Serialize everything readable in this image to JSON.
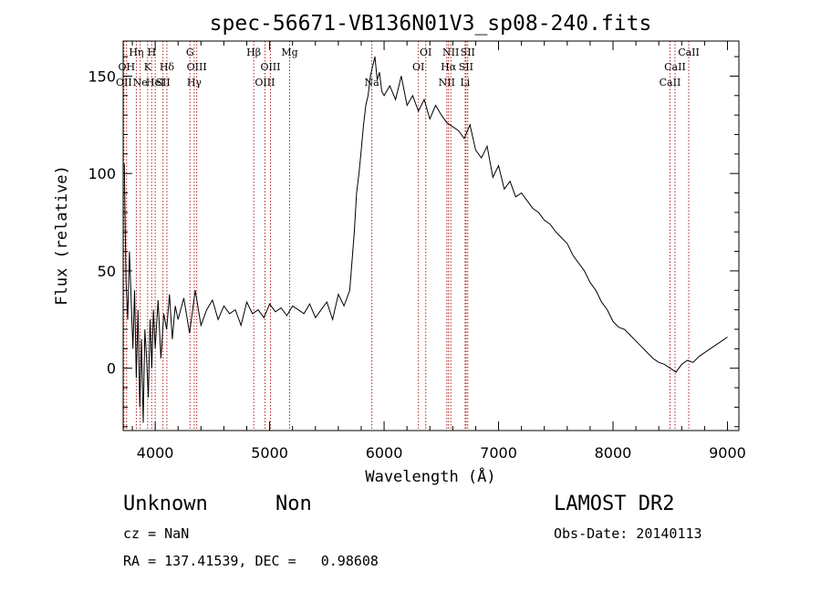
{
  "chart_data": {
    "type": "line",
    "title": "spec-56671-VB136N01V3_sp08-240.fits",
    "xlabel": "Wavelength (Å)",
    "ylabel": "Flux (relative)",
    "xlim": [
      3720,
      9100
    ],
    "ylim": [
      -32,
      168
    ],
    "xticks": [
      4000,
      5000,
      6000,
      7000,
      8000,
      9000
    ],
    "yticks": [
      0,
      50,
      100,
      150
    ],
    "series": [
      {
        "x": [
          3730,
          3745,
          3760,
          3775,
          3790,
          3805,
          3820,
          3835,
          3850,
          3865,
          3880,
          3895,
          3910,
          3925,
          3940,
          3955,
          3970,
          3985,
          4000,
          4025,
          4050,
          4075,
          4100,
          4125,
          4150,
          4175,
          4200,
          4250,
          4300,
          4350,
          4400,
          4450,
          4500,
          4550,
          4600,
          4650,
          4700,
          4750,
          4800,
          4850,
          4900,
          4950,
          5000,
          5050,
          5100,
          5150,
          5200,
          5250,
          5300,
          5350,
          5400,
          5450,
          5500,
          5550,
          5600,
          5650,
          5700,
          5720,
          5740,
          5760,
          5780,
          5800,
          5820,
          5840,
          5860,
          5880,
          5900,
          5920,
          5940,
          5960,
          5980,
          6000,
          6050,
          6100,
          6150,
          6200,
          6250,
          6300,
          6350,
          6400,
          6450,
          6500,
          6550,
          6600,
          6650,
          6700,
          6750,
          6800,
          6850,
          6900,
          6950,
          7000,
          7050,
          7100,
          7150,
          7200,
          7250,
          7300,
          7350,
          7400,
          7450,
          7500,
          7550,
          7600,
          7650,
          7700,
          7750,
          7800,
          7850,
          7900,
          7950,
          8000,
          8050,
          8100,
          8150,
          8200,
          8250,
          8300,
          8350,
          8400,
          8450,
          8500,
          8550,
          8600,
          8650,
          8700,
          8750,
          8800,
          8850,
          8900,
          8950,
          9000
        ],
        "y": [
          105,
          45,
          25,
          60,
          35,
          10,
          40,
          -5,
          30,
          -20,
          15,
          -28,
          20,
          5,
          -15,
          25,
          0,
          30,
          10,
          35,
          5,
          28,
          20,
          38,
          15,
          32,
          25,
          36,
          18,
          40,
          22,
          30,
          35,
          25,
          32,
          28,
          30,
          22,
          34,
          28,
          30,
          26,
          33,
          29,
          31,
          27,
          32,
          30,
          28,
          33,
          26,
          30,
          34,
          25,
          38,
          32,
          40,
          55,
          70,
          90,
          100,
          112,
          125,
          135,
          140,
          150,
          155,
          160,
          148,
          152,
          142,
          140,
          145,
          138,
          150,
          135,
          140,
          132,
          138,
          128,
          135,
          130,
          126,
          124,
          122,
          118,
          125,
          112,
          108,
          114,
          98,
          104,
          92,
          96,
          88,
          90,
          86,
          82,
          80,
          76,
          74,
          70,
          67,
          64,
          58,
          54,
          50,
          44,
          40,
          34,
          30,
          24,
          21,
          20,
          17,
          14,
          11,
          8,
          5,
          3,
          2,
          0,
          -2,
          2,
          4,
          3,
          6,
          8,
          10,
          12,
          14,
          16
        ],
        "color": "#000000"
      }
    ],
    "line_markers": [
      {
        "wl": 3727,
        "label": "OII",
        "row": 2
      },
      {
        "wl": 3750,
        "label": "OH",
        "row": 1
      },
      {
        "wl": 3835,
        "label": "Hη",
        "row": 0
      },
      {
        "wl": 3869,
        "label": "Ne",
        "row": 2
      },
      {
        "wl": 3934,
        "label": "K",
        "row": 1
      },
      {
        "wl": 3969,
        "label": "H",
        "row": 0
      },
      {
        "wl": 4000,
        "label": "HeI",
        "row": 2
      },
      {
        "wl": 4068,
        "label": "SII",
        "row": 2
      },
      {
        "wl": 4102,
        "label": "Hδ",
        "row": 1
      },
      {
        "wl": 4304,
        "label": "G",
        "row": 0
      },
      {
        "wl": 4341,
        "label": "Hγ",
        "row": 2
      },
      {
        "wl": 4363,
        "label": "OIII",
        "row": 1
      },
      {
        "wl": 4861,
        "label": "Hβ",
        "row": 0
      },
      {
        "wl": 4959,
        "label": "OIII",
        "row": 2
      },
      {
        "wl": 5007,
        "label": "OIII",
        "row": 1
      },
      {
        "wl": 5175,
        "label": "Mg",
        "row": 0
      },
      {
        "wl": 5893,
        "label": "Na",
        "row": 2
      },
      {
        "wl": 6300,
        "label": "OI",
        "row": 1
      },
      {
        "wl": 6364,
        "label": "OI",
        "row": 0
      },
      {
        "wl": 6548,
        "label": "NII",
        "row": 2
      },
      {
        "wl": 6563,
        "label": "Hα",
        "row": 1
      },
      {
        "wl": 6583,
        "label": "NII",
        "row": 0
      },
      {
        "wl": 6708,
        "label": "Li",
        "row": 2
      },
      {
        "wl": 6716,
        "label": "SII",
        "row": 1
      },
      {
        "wl": 6731,
        "label": "SII",
        "row": 0
      },
      {
        "wl": 8498,
        "label": "CaII",
        "row": 2
      },
      {
        "wl": 8542,
        "label": "CaII",
        "row": 1
      },
      {
        "wl": 8662,
        "label": "CaII",
        "row": 0
      }
    ]
  },
  "footer": {
    "class_label": "Unknown",
    "subclass_label": "Non",
    "survey": "LAMOST DR2",
    "cz": "cz = NaN",
    "obs_date": "Obs-Date: 20140113",
    "radec": "RA = 137.41539, DEC =   0.98608"
  }
}
